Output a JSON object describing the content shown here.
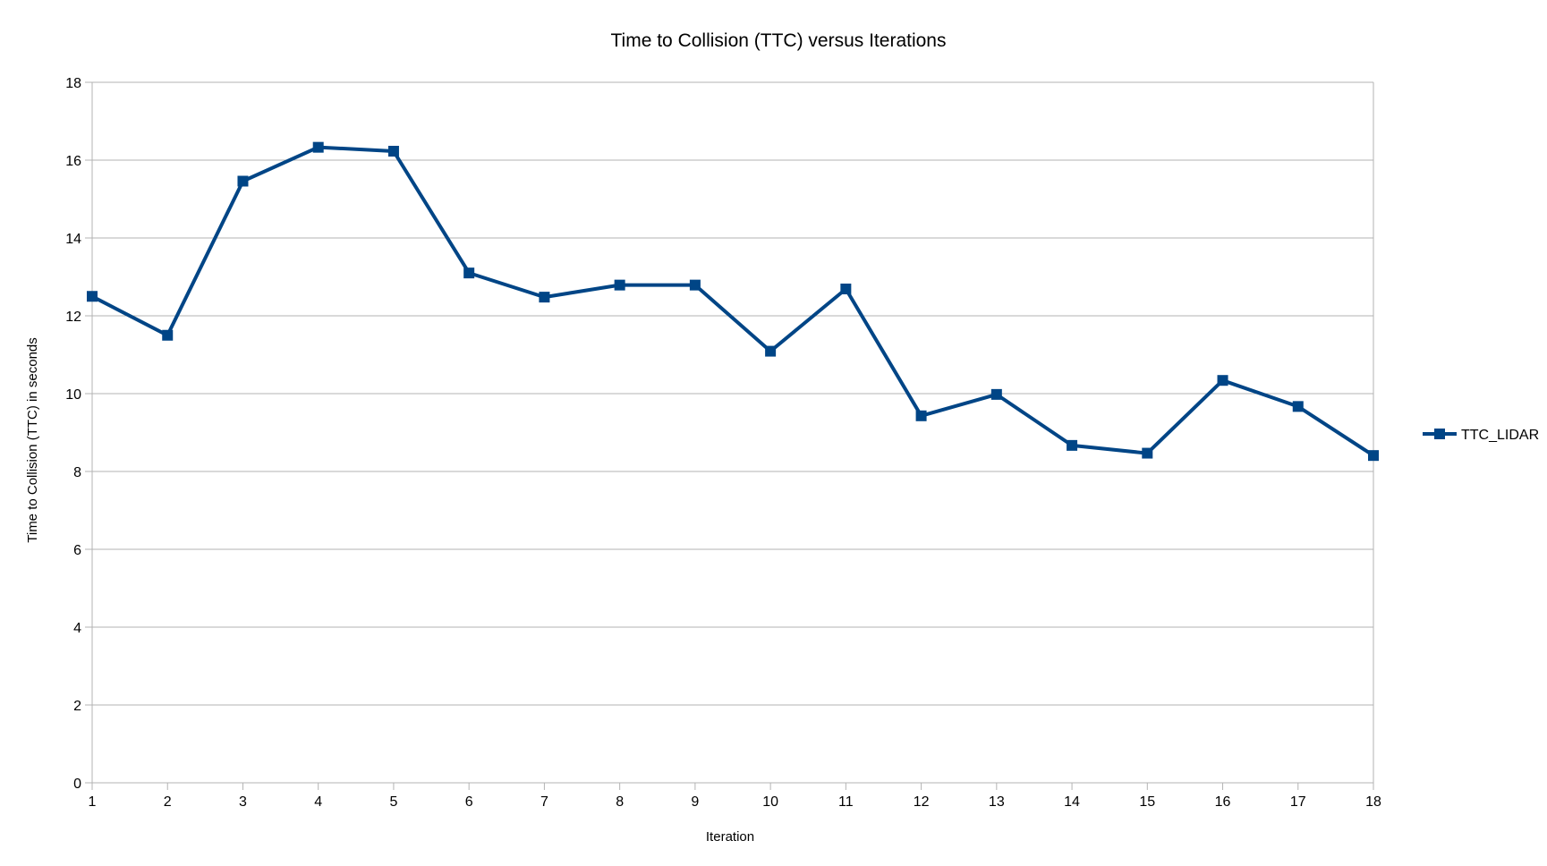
{
  "chart_data": {
    "type": "line",
    "title": "Time to Collision (TTC) versus Iterations",
    "xlabel": "Iteration",
    "ylabel": "Time to Collision (TTC) in seconds",
    "categories": [
      "1",
      "2",
      "3",
      "4",
      "5",
      "6",
      "7",
      "8",
      "9",
      "10",
      "11",
      "12",
      "13",
      "14",
      "15",
      "16",
      "17",
      "18"
    ],
    "series": [
      {
        "name": "TTC_LIDAR",
        "values": [
          12.5,
          11.5,
          15.46,
          16.33,
          16.23,
          13.1,
          12.48,
          12.79,
          12.79,
          11.09,
          12.69,
          9.43,
          9.98,
          8.67,
          8.47,
          10.34,
          9.67,
          8.41
        ],
        "color": "#004586",
        "marker": "square"
      }
    ],
    "ylim": [
      0,
      18
    ],
    "yticks": [
      0,
      2,
      4,
      6,
      8,
      10,
      12,
      14,
      16,
      18
    ],
    "grid": "horizontal",
    "legend_position": "right"
  }
}
